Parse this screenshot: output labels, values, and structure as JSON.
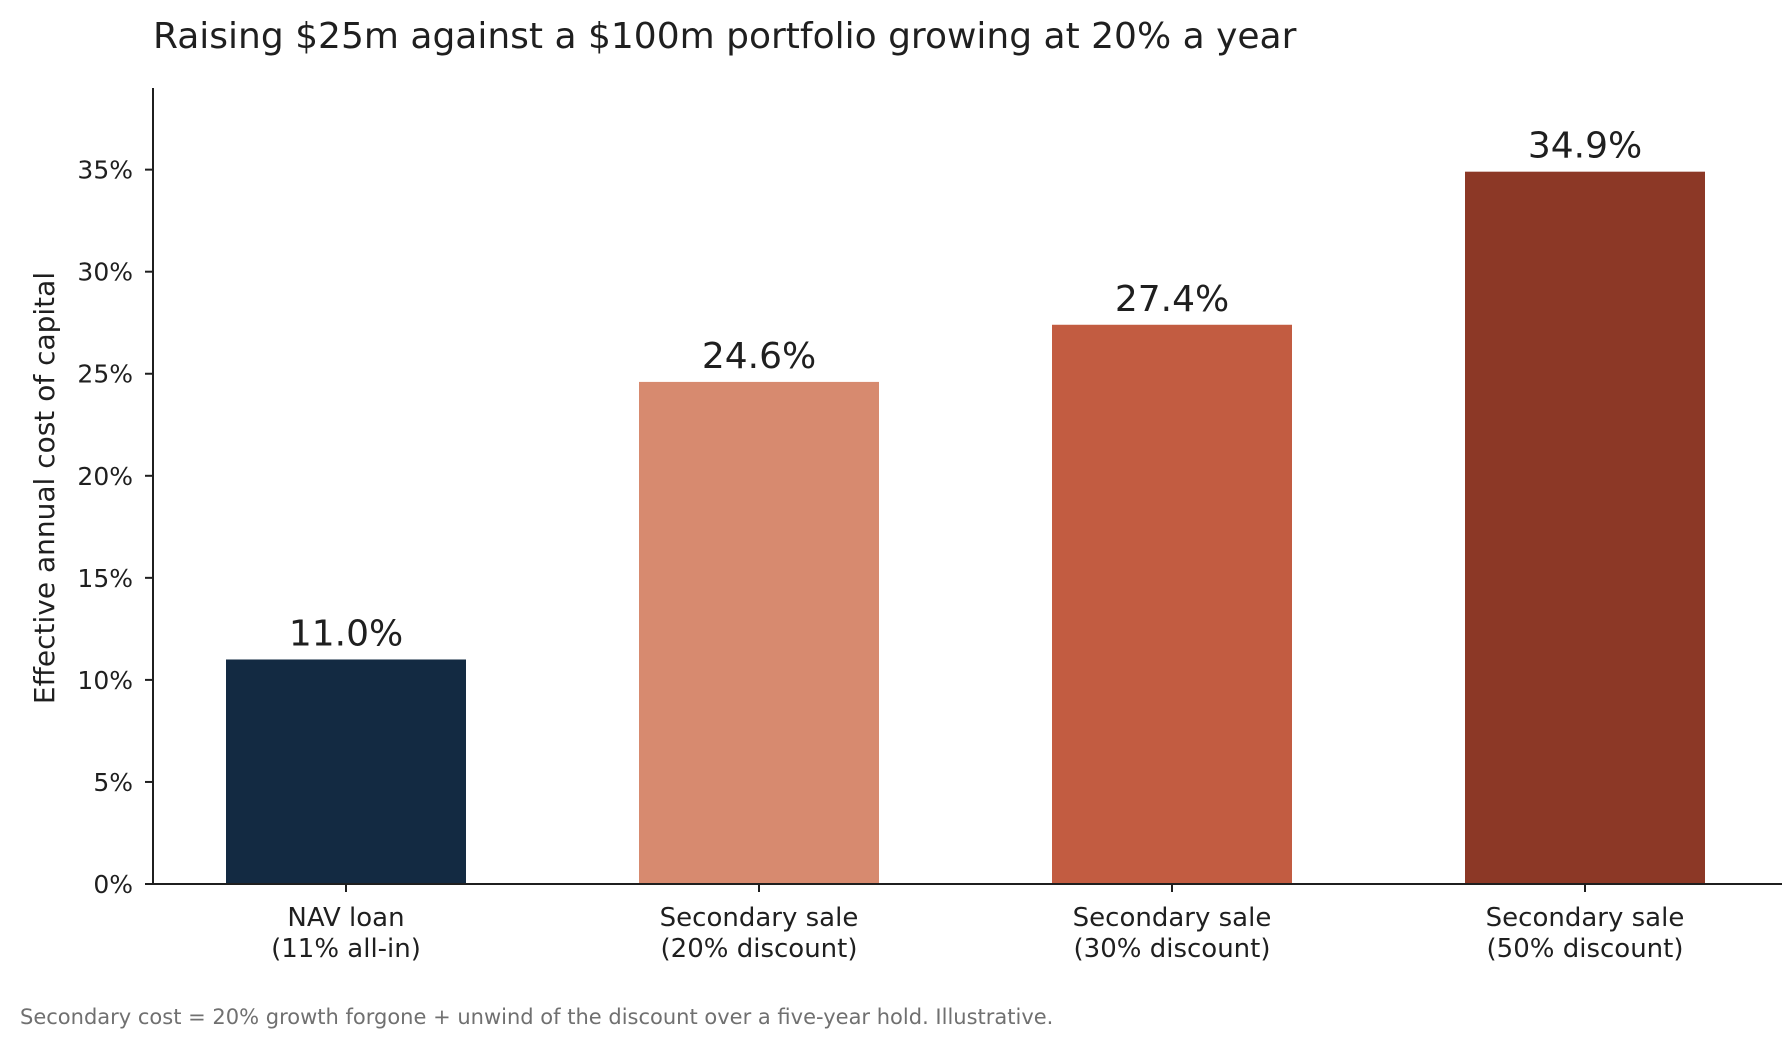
{
  "chart_data": {
    "type": "bar",
    "title": "Raising $25m against a $100m portfolio growing at 20% a year",
    "ylabel": "Effective annual cost of capital",
    "xlabel": "",
    "ylim": [
      0,
      39
    ],
    "yticks": [
      0,
      5,
      10,
      15,
      20,
      25,
      30,
      35
    ],
    "ytick_labels": [
      "0%",
      "5%",
      "10%",
      "15%",
      "20%",
      "25%",
      "30%",
      "35%"
    ],
    "categories": [
      [
        "NAV loan",
        "(11% all-in)"
      ],
      [
        "Secondary sale",
        "(20% discount)"
      ],
      [
        "Secondary sale",
        "(30% discount)"
      ],
      [
        "Secondary sale",
        "(50% discount)"
      ]
    ],
    "values": [
      11.0,
      24.6,
      27.4,
      34.9
    ],
    "value_labels": [
      "11.0%",
      "24.6%",
      "27.4%",
      "34.9%"
    ],
    "colors": [
      "#132a42",
      "#d78a6f",
      "#c25c41",
      "#8c3826"
    ],
    "grid": false,
    "legend": "none",
    "footnote": "Secondary cost = 20% growth forgone + unwind of the discount over a five-year hold. Illustrative."
  }
}
